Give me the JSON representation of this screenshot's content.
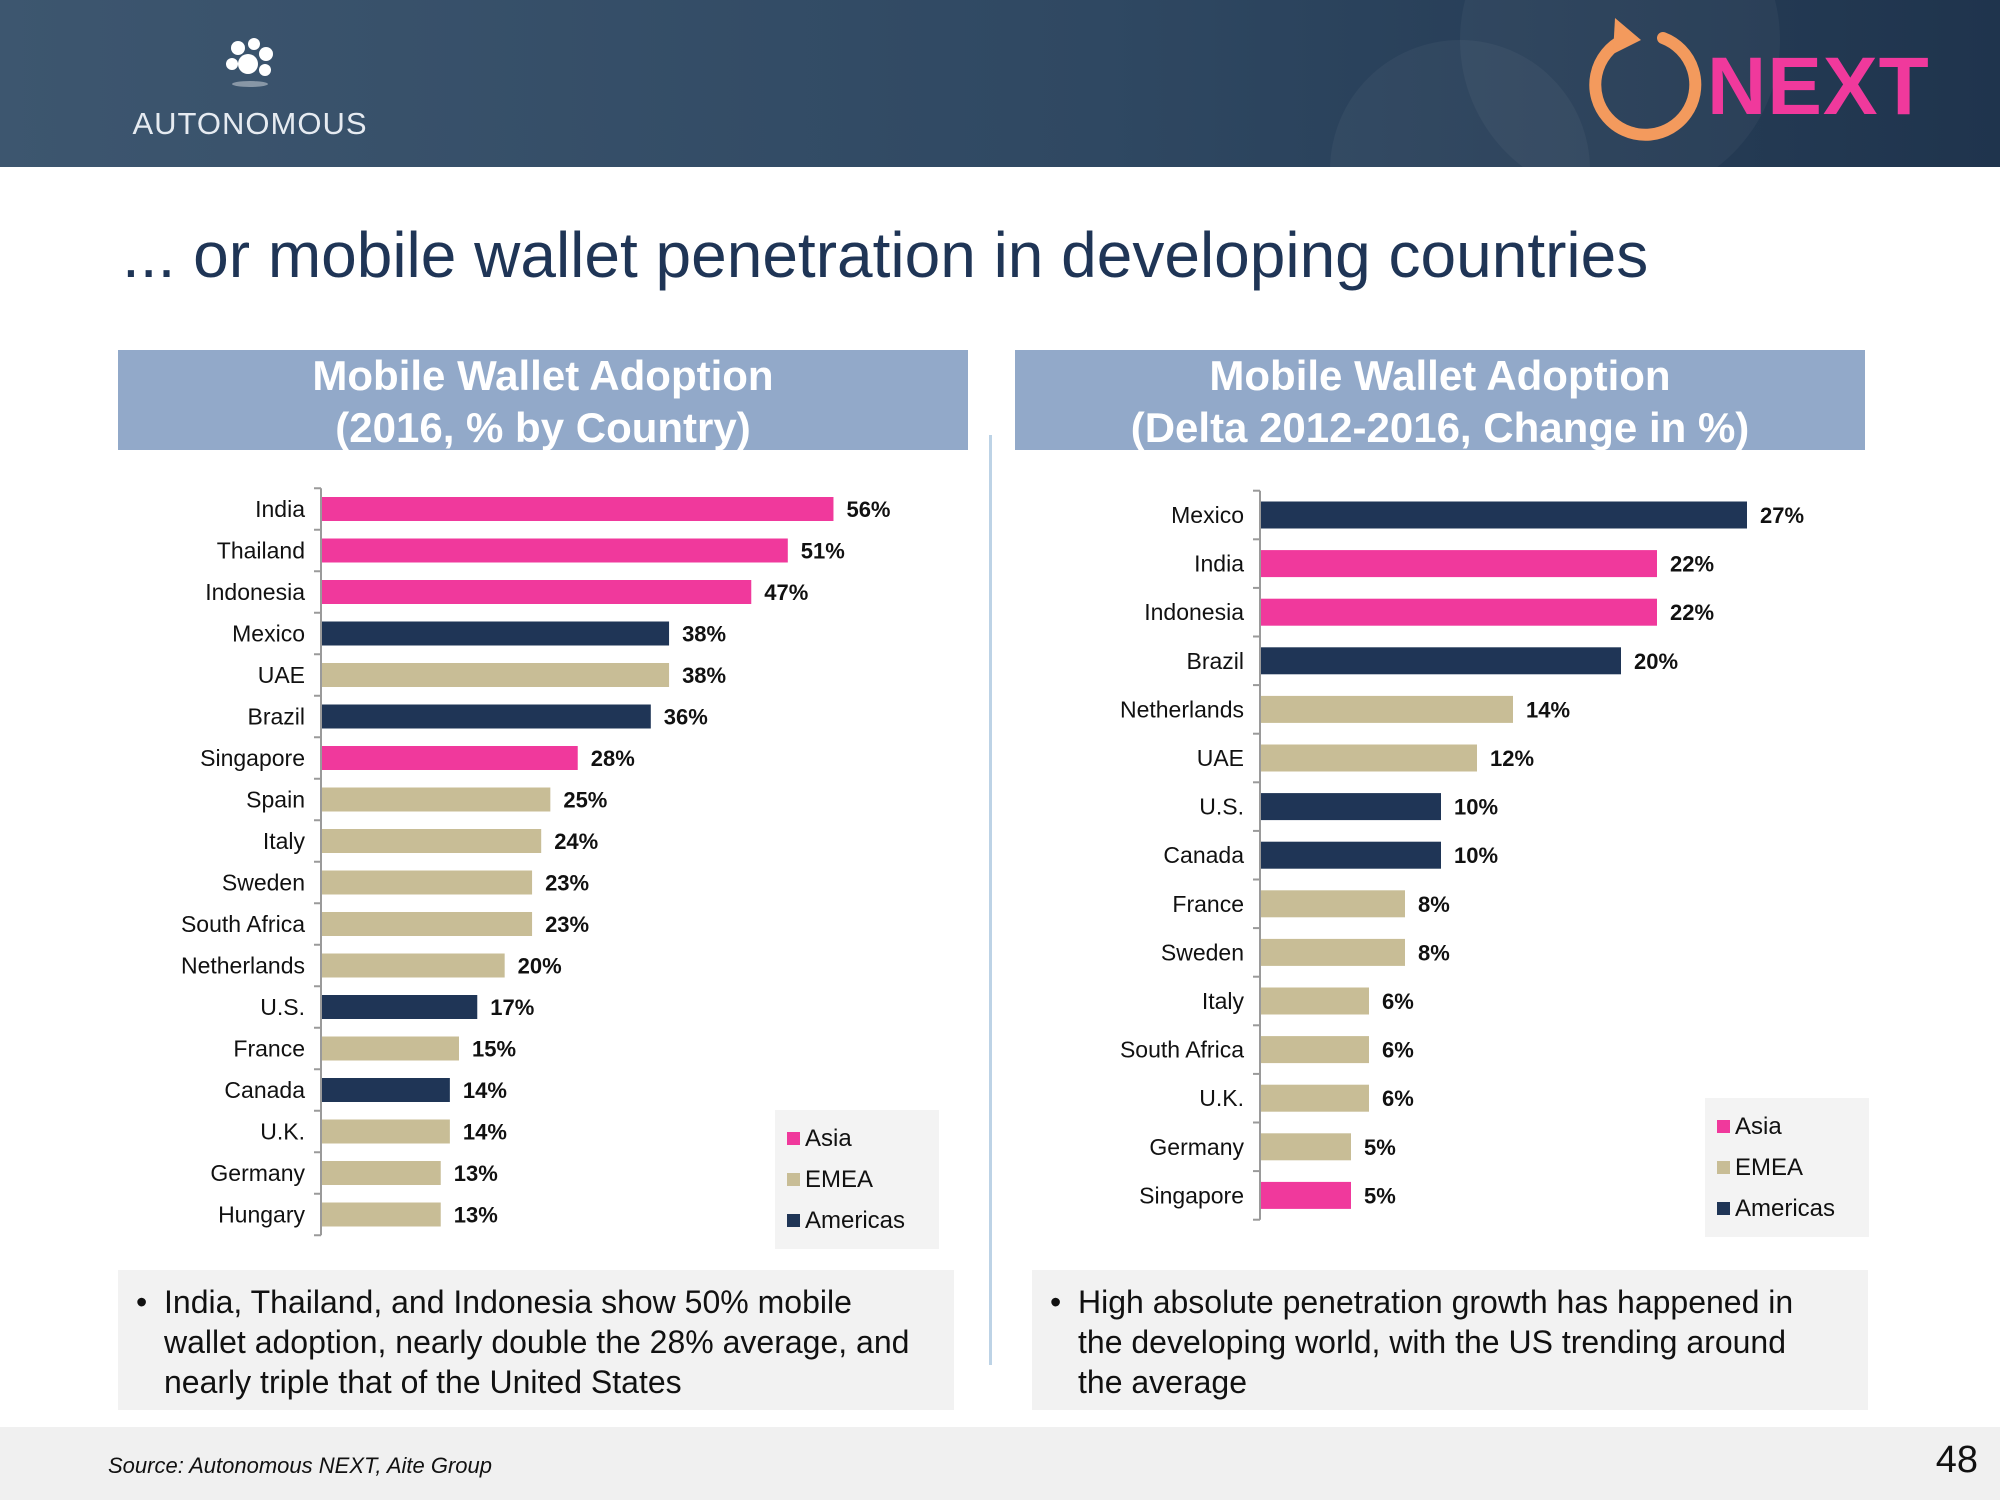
{
  "header": {
    "brand_name": "AUTONOMOUS",
    "partner_name": "NEXT"
  },
  "page_title": "... or mobile wallet penetration in developing countries",
  "colors": {
    "asia": "#f0399c",
    "emea": "#c8bd96",
    "americas": "#1f3556",
    "panel_header": "#92a9c9"
  },
  "chart_data": [
    {
      "type": "bar",
      "orientation": "horizontal",
      "title_line1": "Mobile Wallet Adoption",
      "title_line2": "(2016, % by Country)",
      "categories": [
        "India",
        "Thailand",
        "Indonesia",
        "Mexico",
        "UAE",
        "Brazil",
        "Singapore",
        "Spain",
        "Italy",
        "Sweden",
        "South Africa",
        "Netherlands",
        "U.S.",
        "France",
        "Canada",
        "U.K.",
        "Germany",
        "Hungary"
      ],
      "values": [
        56,
        51,
        47,
        38,
        38,
        36,
        28,
        25,
        24,
        23,
        23,
        20,
        17,
        15,
        14,
        14,
        13,
        13
      ],
      "labels": [
        "56%",
        "51%",
        "47%",
        "38%",
        "38%",
        "36%",
        "28%",
        "25%",
        "24%",
        "23%",
        "23%",
        "20%",
        "17%",
        "15%",
        "14%",
        "14%",
        "13%",
        "13%"
      ],
      "regions": [
        "Asia",
        "Asia",
        "Asia",
        "Americas",
        "EMEA",
        "Americas",
        "Asia",
        "EMEA",
        "EMEA",
        "EMEA",
        "EMEA",
        "EMEA",
        "Americas",
        "EMEA",
        "Americas",
        "EMEA",
        "EMEA",
        "EMEA"
      ],
      "legend": [
        "Asia",
        "EMEA",
        "Americas"
      ],
      "xlim": [
        0,
        60
      ],
      "unit": "%"
    },
    {
      "type": "bar",
      "orientation": "horizontal",
      "title_line1": "Mobile Wallet Adoption",
      "title_line2": "(Delta 2012-2016, Change in %)",
      "categories": [
        "Mexico",
        "India",
        "Indonesia",
        "Brazil",
        "Netherlands",
        "UAE",
        "U.S.",
        "Canada",
        "France",
        "Sweden",
        "Italy",
        "South Africa",
        "U.K.",
        "Germany",
        "Singapore"
      ],
      "values": [
        27,
        22,
        22,
        20,
        14,
        12,
        10,
        10,
        8,
        8,
        6,
        6,
        6,
        5,
        5
      ],
      "labels": [
        "27%",
        "22%",
        "22%",
        "20%",
        "14%",
        "12%",
        "10%",
        "10%",
        "8%",
        "8%",
        "6%",
        "6%",
        "6%",
        "5%",
        "5%"
      ],
      "regions": [
        "Americas",
        "Asia",
        "Asia",
        "Americas",
        "EMEA",
        "EMEA",
        "Americas",
        "Americas",
        "EMEA",
        "EMEA",
        "EMEA",
        "EMEA",
        "EMEA",
        "EMEA",
        "Asia"
      ],
      "legend": [
        "Asia",
        "EMEA",
        "Americas"
      ],
      "xlim": [
        0,
        30
      ],
      "unit": "%"
    }
  ],
  "notes": [
    "India, Thailand, and Indonesia show 50% mobile wallet adoption, nearly double the 28% average, and nearly triple that of the United States",
    "High absolute penetration growth has happened in the developing world, with the US trending around the average"
  ],
  "footer": {
    "source": "Source: Autonomous NEXT, Aite Group",
    "page_number": "48"
  }
}
